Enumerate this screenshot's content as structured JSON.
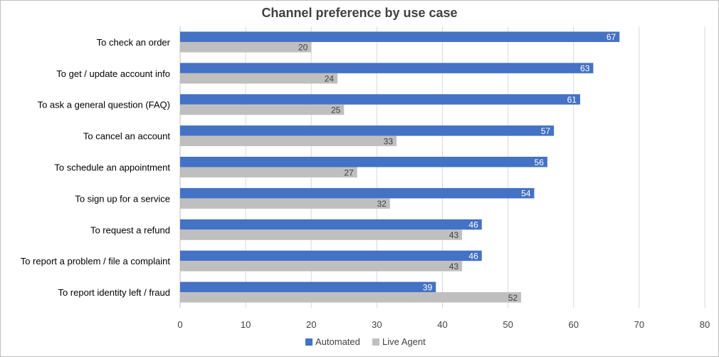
{
  "chart_data": {
    "type": "bar",
    "orientation": "horizontal",
    "title": "Channel preference by use case",
    "categories": [
      "To check an order",
      "To get / update account info",
      "To ask a general question (FAQ)",
      "To cancel an account",
      "To schedule an appointment",
      "To sign up for a service",
      "To request a refund",
      "To report a problem / file a complaint",
      "To report identity left / fraud"
    ],
    "series": [
      {
        "name": "Automated",
        "color": "#4472c4",
        "label_color": "#ffffff",
        "values": [
          67,
          63,
          61,
          57,
          56,
          54,
          46,
          46,
          39
        ]
      },
      {
        "name": "Live Agent",
        "color": "#bfbfbf",
        "label_color": "#404040",
        "values": [
          20,
          24,
          25,
          33,
          27,
          32,
          43,
          43,
          52
        ]
      }
    ],
    "xlim": [
      0,
      80
    ],
    "xticks": [
      0,
      10,
      20,
      30,
      40,
      50,
      60,
      70,
      80
    ],
    "grid": true,
    "legend_position": "bottom",
    "xlabel": "",
    "ylabel": ""
  }
}
